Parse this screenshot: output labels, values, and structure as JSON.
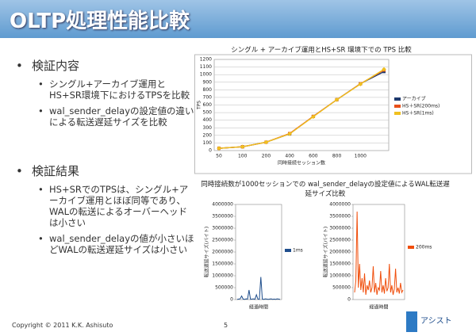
{
  "title": "OLTP処理性能比較",
  "sections": [
    {
      "heading": "検証内容",
      "items": [
        "シングル+アーカイブ運用とHS+SR環境下におけるTPSを比較",
        "wal_sender_delayの設定値の違いによる転送遅延サイズを比較"
      ]
    },
    {
      "heading": "検証結果",
      "items": [
        "HS+SRでのTPSは、シングル+アーカイブ運用とほぼ同等であり、WALの転送によるオーバーヘッドは小さい",
        "wal_sender_delayの値が小さいほどWALの転送遅延サイズは小さい"
      ]
    }
  ],
  "group_title": "同時接続数が1000セッションでの wal_sender_delayの設定値によるWAL転送遅延サイズ比較",
  "footer": {
    "copyright": "Copyright © 2011 K.K. Ashisuto",
    "page": "5",
    "logo": "アシスト"
  },
  "chart_data": [
    {
      "type": "line",
      "title": "シングル + アーカイブ運用とHS+SR 環境下での TPS 比較",
      "x_label": "同時接続セッション数",
      "y_label": "TPS",
      "categories": [
        "50",
        "100",
        "200",
        "400",
        "600",
        "800",
        "1000",
        null
      ],
      "series": [
        {
          "name": "アーカイブ",
          "color": "#1f3a6e",
          "values": [
            30,
            50,
            110,
            220,
            450,
            670,
            880,
            1040
          ]
        },
        {
          "name": "HS＋SR(200ms)",
          "color": "#e8501a",
          "values": [
            30,
            50,
            110,
            225,
            450,
            670,
            880,
            1060
          ]
        },
        {
          "name": "HS＋SR(1ms)",
          "color": "#f0c020",
          "values": [
            30,
            50,
            110,
            220,
            445,
            670,
            875,
            1070
          ]
        }
      ],
      "ylim": [
        0,
        1200
      ],
      "yticks": [
        0,
        100,
        200,
        300,
        400,
        500,
        600,
        700,
        800,
        900,
        1000,
        1100,
        1200
      ],
      "grid": true
    },
    {
      "type": "line",
      "x_label": "経過時間",
      "y_label": "転送遅延サイズ(バイト)",
      "series": [
        {
          "name": "1ms",
          "color": "#1f4e8c",
          "values": [
            10000,
            20000,
            30000,
            150000,
            20000,
            10000,
            30000,
            20000,
            400000,
            10000,
            20000,
            30000,
            10000,
            200000,
            20000,
            10000,
            950000,
            20000,
            10000,
            30000,
            20000,
            10000,
            20000,
            30000,
            10000,
            20000,
            10000,
            30000,
            20000,
            10000
          ]
        }
      ],
      "ylim": [
        0,
        4000000
      ],
      "yticks": [
        0,
        500000,
        1000000,
        1500000,
        2000000,
        2500000,
        3000000,
        3500000,
        4000000
      ]
    },
    {
      "type": "line",
      "x_label": "経過時間",
      "y_label": "転送遅延サイズ(バイト)",
      "series": [
        {
          "name": "200ms",
          "color": "#f04e0c",
          "values": [
            300000,
            800000,
            3700000,
            500000,
            1500000,
            400000,
            900000,
            300000,
            1100000,
            200000,
            600000,
            400000,
            800000,
            300000,
            500000,
            1400000,
            300000,
            700000,
            200000,
            500000,
            400000,
            1200000,
            300000,
            600000,
            250000,
            900000,
            350000,
            500000,
            1500000,
            300000,
            600000,
            200000,
            450000,
            1300000,
            300000,
            500000,
            250000,
            700000,
            300000,
            400000
          ]
        }
      ],
      "ylim": [
        0,
        4000000
      ],
      "yticks": [
        0,
        500000,
        1000000,
        1500000,
        2000000,
        2500000,
        3000000,
        3500000,
        4000000
      ]
    }
  ]
}
